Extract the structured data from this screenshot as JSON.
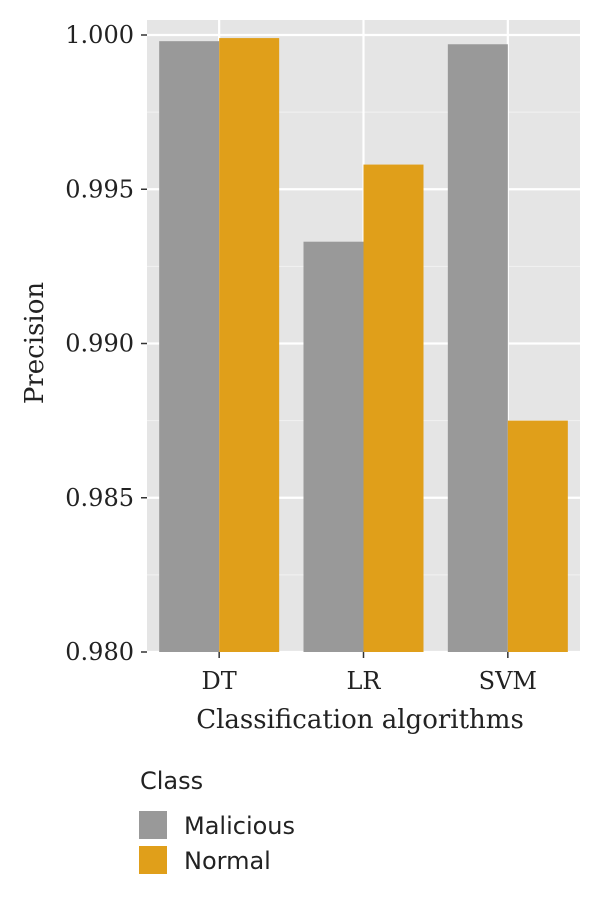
{
  "chart_data": {
    "type": "bar",
    "categories": [
      "DT",
      "LR",
      "SVM"
    ],
    "series": [
      {
        "name": "Malicious",
        "values": [
          0.9998,
          0.9933,
          0.9997
        ],
        "color": "#999999"
      },
      {
        "name": "Normal",
        "values": [
          0.9999,
          0.9958,
          0.9875
        ],
        "color": "#E09F1A"
      }
    ],
    "xlabel": "Classification algorithms",
    "ylabel": "Precision",
    "ylim": [
      0.98,
      1.0
    ],
    "yticks": [
      "0.980",
      "0.985",
      "0.990",
      "0.995",
      "1.000"
    ],
    "ytick_values": [
      0.98,
      0.985,
      0.99,
      0.995,
      1.0
    ],
    "grid": true,
    "legend": {
      "title": "Class",
      "position": "bottom-left"
    },
    "panel_background": "#E5E5E5"
  }
}
